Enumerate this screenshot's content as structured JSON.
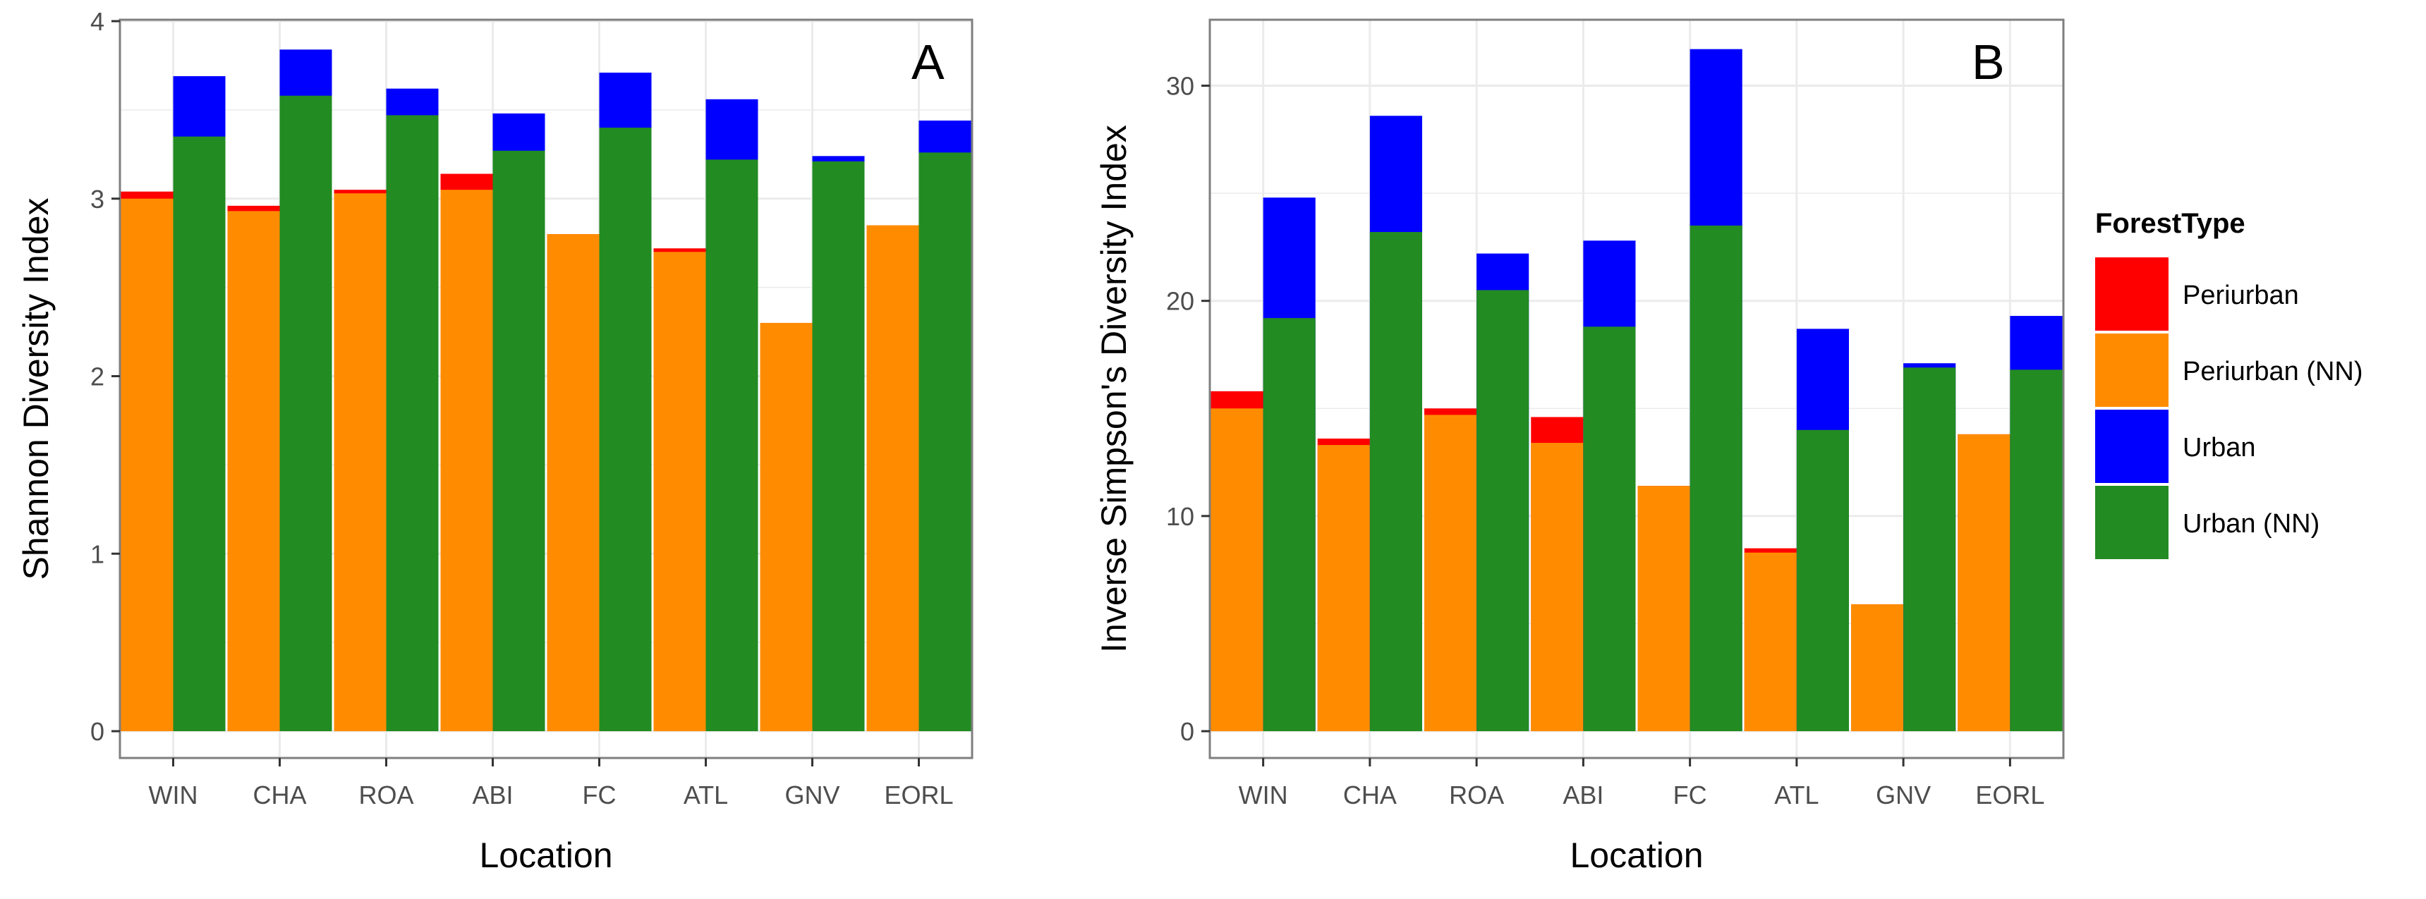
{
  "colors": {
    "Periurban": "#ff0000",
    "Periurban (NN)": "#ff8c00",
    "Urban": "#0000ff",
    "Urban (NN)": "#228b22",
    "panel_bg": "#ffffff",
    "grid": "#ebebeb",
    "panel_border": "#7f7f7f",
    "tick_text": "#4d4d4d"
  },
  "legend": {
    "title": "ForestType",
    "items": [
      {
        "label": "Periurban",
        "color_key": "Periurban"
      },
      {
        "label": "Periurban (NN)",
        "color_key": "Periurban (NN)"
      },
      {
        "label": "Urban",
        "color_key": "Urban"
      },
      {
        "label": "Urban (NN)",
        "color_key": "Urban (NN)"
      }
    ]
  },
  "chart_data": [
    {
      "type": "bar",
      "panel_label": "A",
      "xlabel": "Location",
      "ylabel": "Shannon Diversity Index",
      "ylim": [
        0,
        4
      ],
      "yticks": [
        0,
        1,
        2,
        3,
        4
      ],
      "grid": true,
      "categories": [
        "WIN",
        "CHA",
        "ROA",
        "ABI",
        "FC",
        "ATL",
        "GNV",
        "EORL"
      ],
      "series": [
        {
          "name": "Periurban (NN)",
          "values": [
            3.0,
            2.93,
            3.03,
            3.05,
            2.8,
            2.7,
            2.3,
            2.85
          ]
        },
        {
          "name": "Periurban",
          "values": [
            3.04,
            2.96,
            3.05,
            3.14,
            2.8,
            2.72,
            2.3,
            2.85
          ]
        },
        {
          "name": "Urban (NN)",
          "values": [
            3.35,
            3.58,
            3.47,
            3.27,
            3.4,
            3.22,
            3.21,
            3.26
          ]
        },
        {
          "name": "Urban",
          "values": [
            3.69,
            3.84,
            3.62,
            3.48,
            3.71,
            3.56,
            3.24,
            3.44
          ]
        }
      ]
    },
    {
      "type": "bar",
      "panel_label": "B",
      "xlabel": "Location",
      "ylabel": "Inverse Simpson's Diversity Index",
      "ylim": [
        0,
        33
      ],
      "yticks": [
        0,
        10,
        20,
        30
      ],
      "grid": true,
      "categories": [
        "WIN",
        "CHA",
        "ROA",
        "ABI",
        "FC",
        "ATL",
        "GNV",
        "EORL"
      ],
      "series": [
        {
          "name": "Periurban (NN)",
          "values": [
            15.0,
            13.3,
            14.7,
            13.4,
            11.4,
            8.3,
            5.9,
            13.8
          ]
        },
        {
          "name": "Periurban",
          "values": [
            15.8,
            13.6,
            15.0,
            14.6,
            11.4,
            8.5,
            5.9,
            13.8
          ]
        },
        {
          "name": "Urban (NN)",
          "values": [
            19.2,
            23.2,
            20.5,
            18.8,
            23.5,
            14.0,
            16.9,
            16.8
          ]
        },
        {
          "name": "Urban",
          "values": [
            24.8,
            28.6,
            22.2,
            22.8,
            31.7,
            18.7,
            17.1,
            19.3
          ]
        }
      ]
    }
  ]
}
